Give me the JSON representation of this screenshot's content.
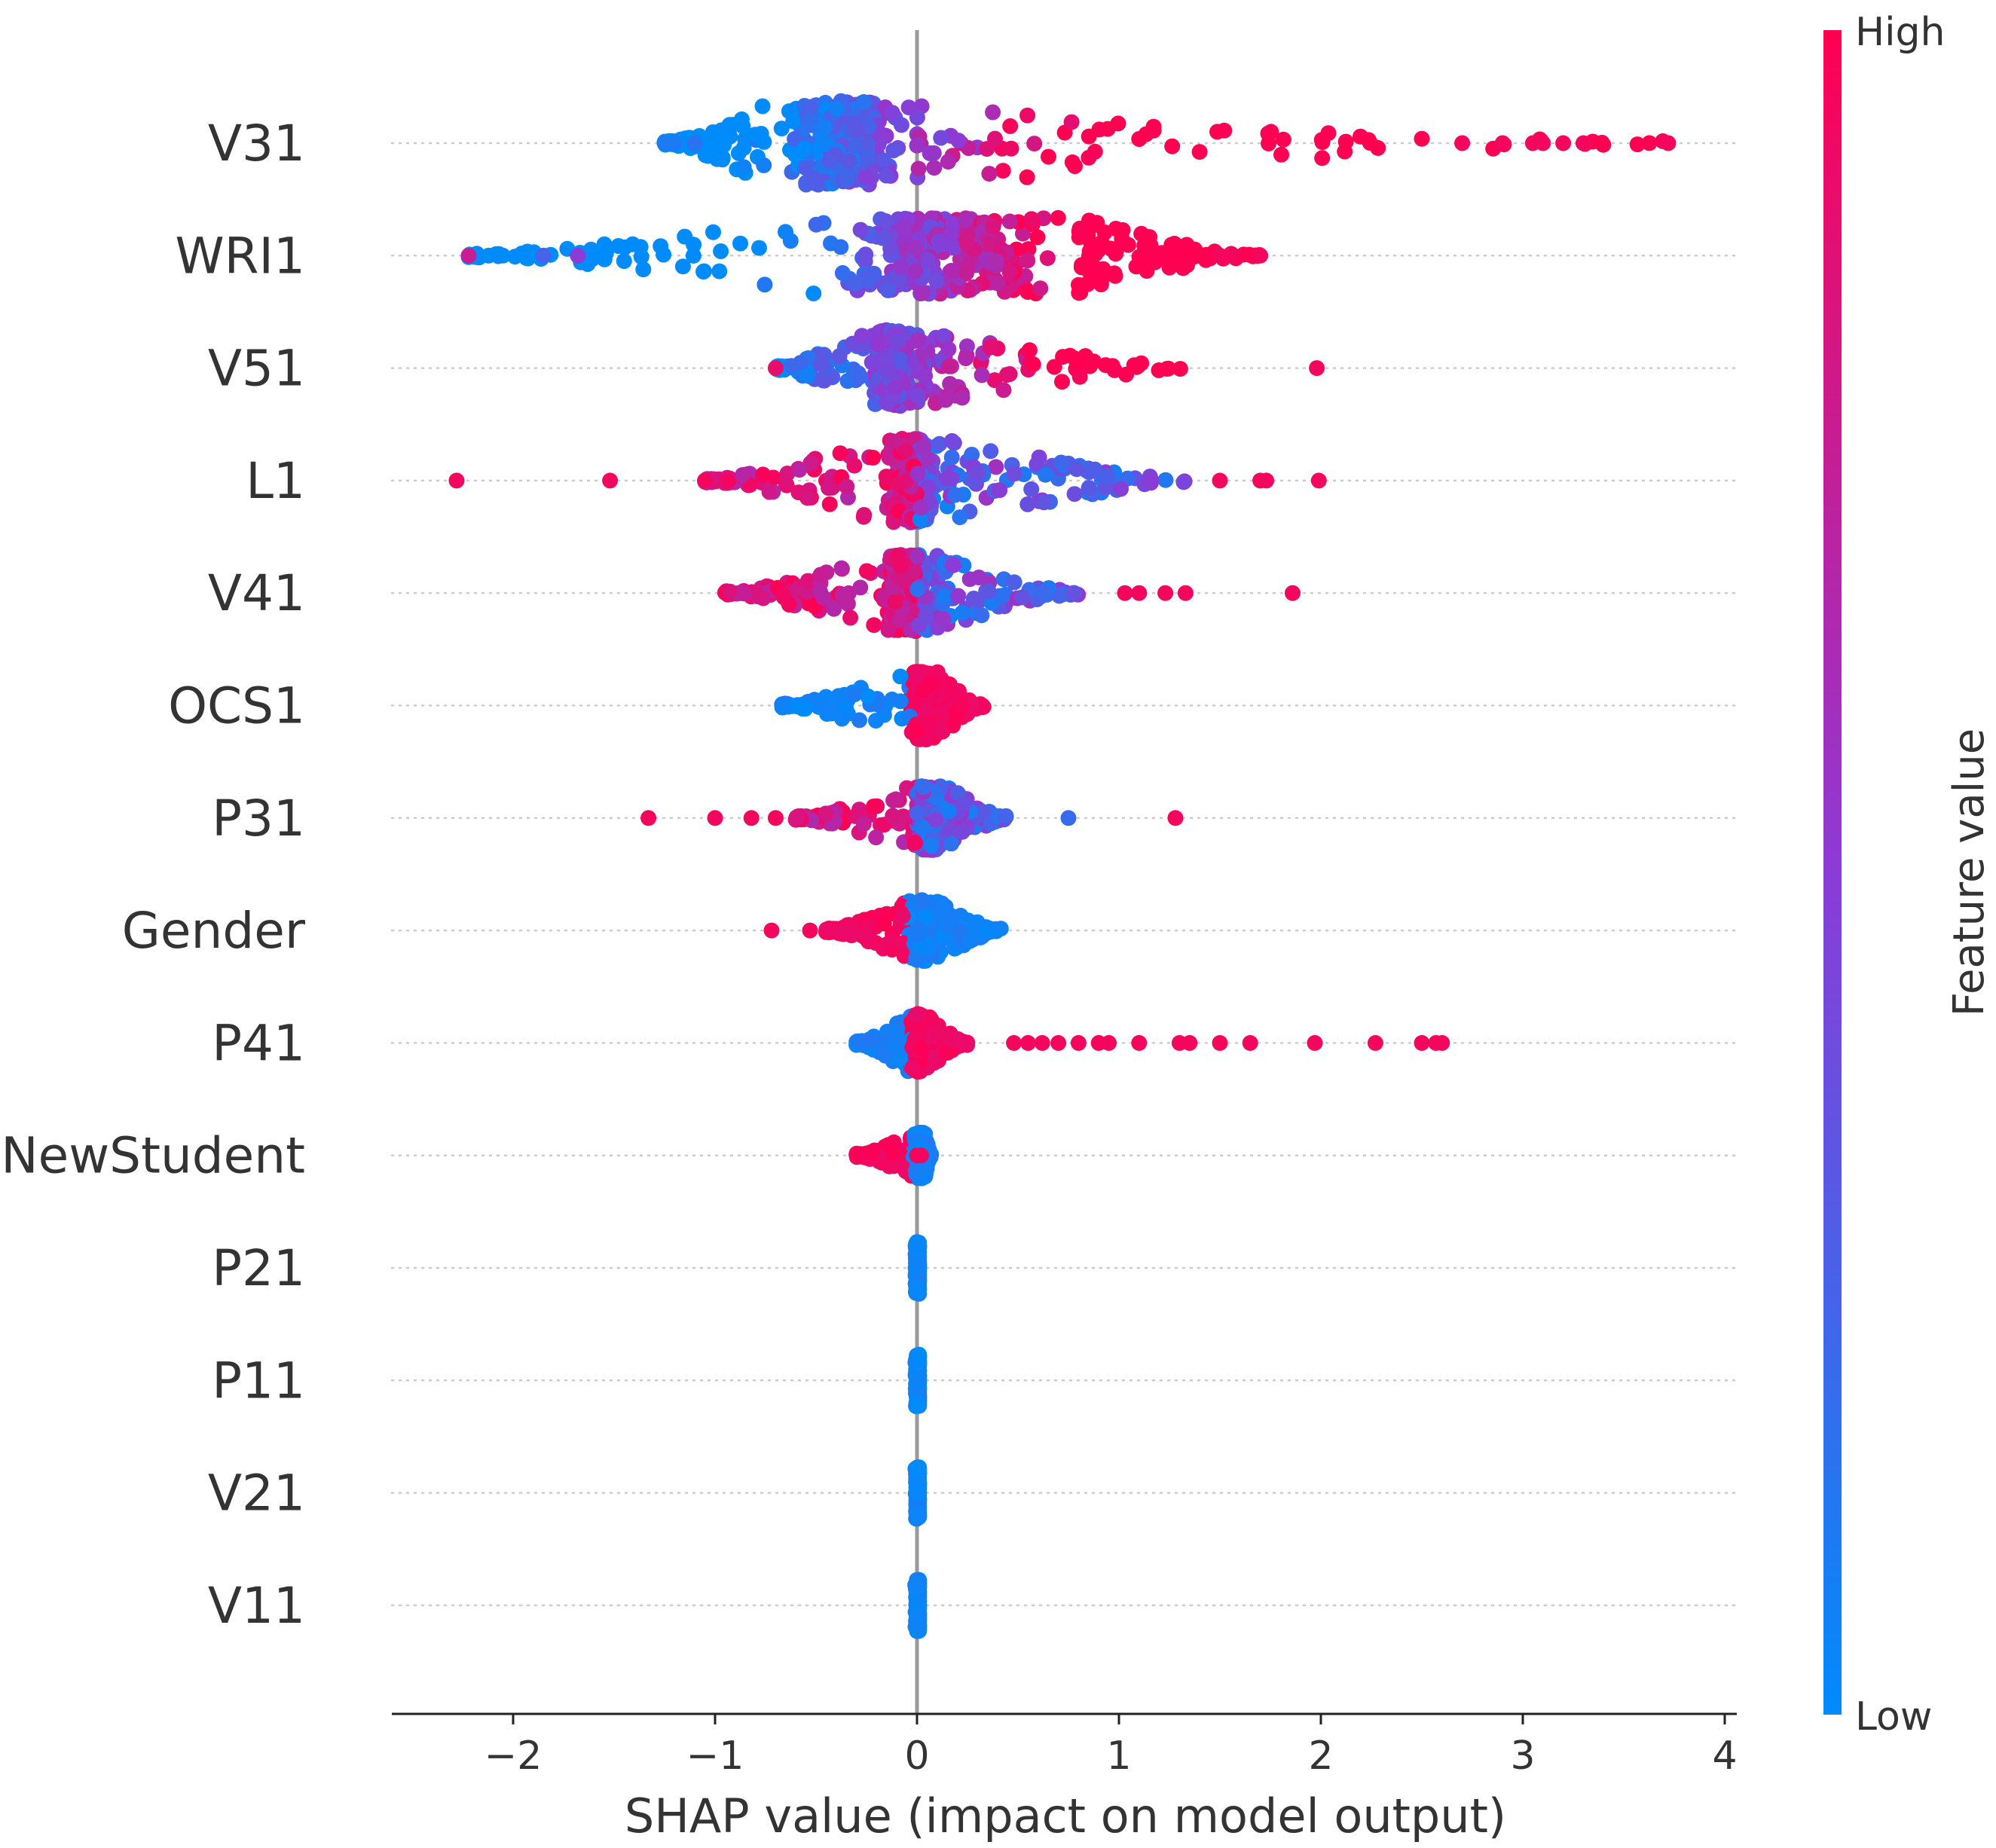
{
  "chart_data": {
    "type": "scatter",
    "subtype": "shap-beeswarm",
    "xlabel": "SHAP value (impact on model output)",
    "xlim": [
      -2.6,
      4.05
    ],
    "xticks": [
      -2,
      -1,
      0,
      1,
      2,
      3,
      4
    ],
    "xtick_labels": [
      "−2",
      "−1",
      "0",
      "1",
      "2",
      "3",
      "4"
    ],
    "colorbar": {
      "title": "Feature value",
      "high_label": "High",
      "low_label": "Low",
      "low_color": "#008bfb",
      "high_color": "#ff0052"
    },
    "features": [
      {
        "name": "V31",
        "range": [
          -1.25,
          3.72
        ],
        "core": [
          -0.75,
          0.0
        ],
        "spread": 0.55,
        "color_mode": "pos_high",
        "outliers": [
          [
            -1.25,
            0.1
          ],
          [
            -1.2,
            0.1
          ],
          [
            -1.1,
            0.15
          ],
          [
            2.7,
            0.95
          ],
          [
            2.9,
            0.95
          ],
          [
            3.05,
            0.95
          ],
          [
            3.1,
            0.95
          ],
          [
            3.2,
            0.95
          ],
          [
            3.3,
            0.95
          ],
          [
            3.72,
            0.95
          ]
        ]
      },
      {
        "name": "WRI1",
        "range": [
          -2.22,
          1.7
        ],
        "core": [
          -0.6,
          0.8
        ],
        "spread": 0.5,
        "color_mode": "pos_high",
        "outliers": [
          [
            -2.22,
            0.75
          ],
          [
            -1.85,
            0.25
          ],
          [
            -1.68,
            0.5
          ],
          [
            1.5,
            0.95
          ],
          [
            1.55,
            0.95
          ],
          [
            1.7,
            0.95
          ]
        ]
      },
      {
        "name": "V51",
        "range": [
          -0.7,
          1.42
        ],
        "core": [
          -0.25,
          0.0
        ],
        "spread": 0.5,
        "color_mode": "pos_high",
        "outliers": [
          [
            -0.7,
            0.9
          ],
          [
            1.98,
            0.95
          ]
        ]
      },
      {
        "name": "L1",
        "range": [
          -1.05,
          1.4
        ],
        "core": [
          -0.2,
          0.15
        ],
        "spread": 0.55,
        "color_mode": "neg_high",
        "outliers": [
          [
            -2.28,
            0.95
          ],
          [
            -1.52,
            0.95
          ],
          [
            -1.05,
            0.95
          ],
          [
            1.5,
            0.95
          ],
          [
            1.7,
            0.95
          ],
          [
            1.73,
            0.95
          ],
          [
            1.99,
            0.95
          ]
        ]
      },
      {
        "name": "V41",
        "range": [
          -0.95,
          0.83
        ],
        "core": [
          -0.2,
          0.1
        ],
        "spread": 0.5,
        "color_mode": "neg_high",
        "outliers": [
          [
            1.03,
            0.95
          ],
          [
            1.1,
            0.95
          ],
          [
            1.23,
            0.95
          ],
          [
            1.33,
            0.95
          ],
          [
            1.86,
            0.95
          ]
        ]
      },
      {
        "name": "OCS1",
        "range": [
          -0.67,
          0.33
        ],
        "core": [
          -0.05,
          0.1
        ],
        "spread": 0.45,
        "color_mode": "pos_high_sharp",
        "outliers": []
      },
      {
        "name": "P31",
        "range": [
          -0.6,
          0.45
        ],
        "core": [
          -0.05,
          0.15
        ],
        "spread": 0.42,
        "color_mode": "neg_high",
        "outliers": [
          [
            -1.33,
            0.95
          ],
          [
            -1.0,
            0.95
          ],
          [
            -0.82,
            0.95
          ],
          [
            -0.7,
            0.95
          ],
          [
            0.75,
            0.2
          ],
          [
            1.28,
            0.95
          ]
        ]
      },
      {
        "name": "Gender",
        "range": [
          -0.45,
          0.42
        ],
        "core": [
          -0.05,
          0.1
        ],
        "spread": 0.4,
        "color_mode": "neg_high_sharp",
        "outliers": [
          [
            -0.72,
            0.95
          ],
          [
            -0.53,
            0.95
          ]
        ]
      },
      {
        "name": "P41",
        "range": [
          -0.3,
          0.25
        ],
        "core": [
          -0.05,
          0.05
        ],
        "spread": 0.38,
        "color_mode": "pos_high_sharp",
        "outliers": [
          [
            0.48,
            0.95
          ],
          [
            0.55,
            0.95
          ],
          [
            0.62,
            0.95
          ],
          [
            0.7,
            0.95
          ],
          [
            0.8,
            0.95
          ],
          [
            0.9,
            0.95
          ],
          [
            0.95,
            0.95
          ],
          [
            1.1,
            0.95
          ],
          [
            1.3,
            0.95
          ],
          [
            1.35,
            0.95
          ],
          [
            1.5,
            0.95
          ],
          [
            1.65,
            0.95
          ],
          [
            1.97,
            0.95
          ],
          [
            2.27,
            0.95
          ],
          [
            2.5,
            0.95
          ],
          [
            2.57,
            0.95
          ],
          [
            2.6,
            0.95
          ]
        ]
      },
      {
        "name": "NewStudent",
        "range": [
          -0.3,
          0.07
        ],
        "core": [
          -0.02,
          0.04
        ],
        "spread": 0.3,
        "color_mode": "neg_high_sharp",
        "outliers": [
          [
            0.0,
            0.95
          ],
          [
            0.02,
            0.95
          ]
        ]
      },
      {
        "name": "P21",
        "range": [
          -0.01,
          0.01
        ],
        "core": [
          -0.01,
          0.01
        ],
        "spread": 0.34,
        "color_mode": "low",
        "outliers": []
      },
      {
        "name": "P11",
        "range": [
          -0.01,
          0.01
        ],
        "core": [
          -0.01,
          0.01
        ],
        "spread": 0.34,
        "color_mode": "low",
        "outliers": []
      },
      {
        "name": "V21",
        "range": [
          -0.01,
          0.01
        ],
        "core": [
          -0.01,
          0.01
        ],
        "spread": 0.34,
        "color_mode": "low",
        "outliers": []
      },
      {
        "name": "V11",
        "range": [
          -0.01,
          0.01
        ],
        "core": [
          -0.01,
          0.01
        ],
        "spread": 0.34,
        "color_mode": "low",
        "outliers": []
      }
    ]
  }
}
